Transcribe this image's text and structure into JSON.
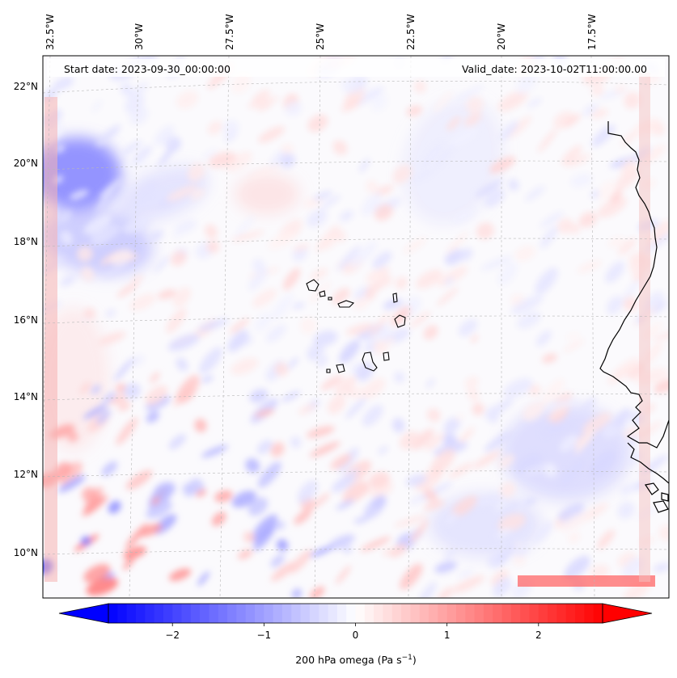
{
  "map": {
    "start_label": "Start date: 2023-09-30_00:00:00",
    "valid_label": "Valid_date: 2023-10-02T11:00:00.00",
    "lon_labels": [
      "32.5°W",
      "30°W",
      "27.5°W",
      "25°W",
      "22.5°W",
      "20°W",
      "17.5°W"
    ],
    "lat_labels": [
      "22°N",
      "20°N",
      "18°N",
      "16°N",
      "14°N",
      "12°N",
      "10°N"
    ],
    "field": "200 hPa omega",
    "colormap": "bwr",
    "value_range": [
      -2.7,
      2.7
    ],
    "gridlines": true
  },
  "colorbar": {
    "ticks": [
      {
        "value": -2,
        "label": "−2"
      },
      {
        "value": -1,
        "label": "−1"
      },
      {
        "value": 0,
        "label": "0"
      },
      {
        "value": 1,
        "label": "1"
      },
      {
        "value": 2,
        "label": "2"
      }
    ],
    "label_main": "200 hPa omega (Pa s",
    "label_sup": "−1",
    "label_end": ")",
    "min": -2.7,
    "max": 2.7,
    "extend": "both"
  }
}
